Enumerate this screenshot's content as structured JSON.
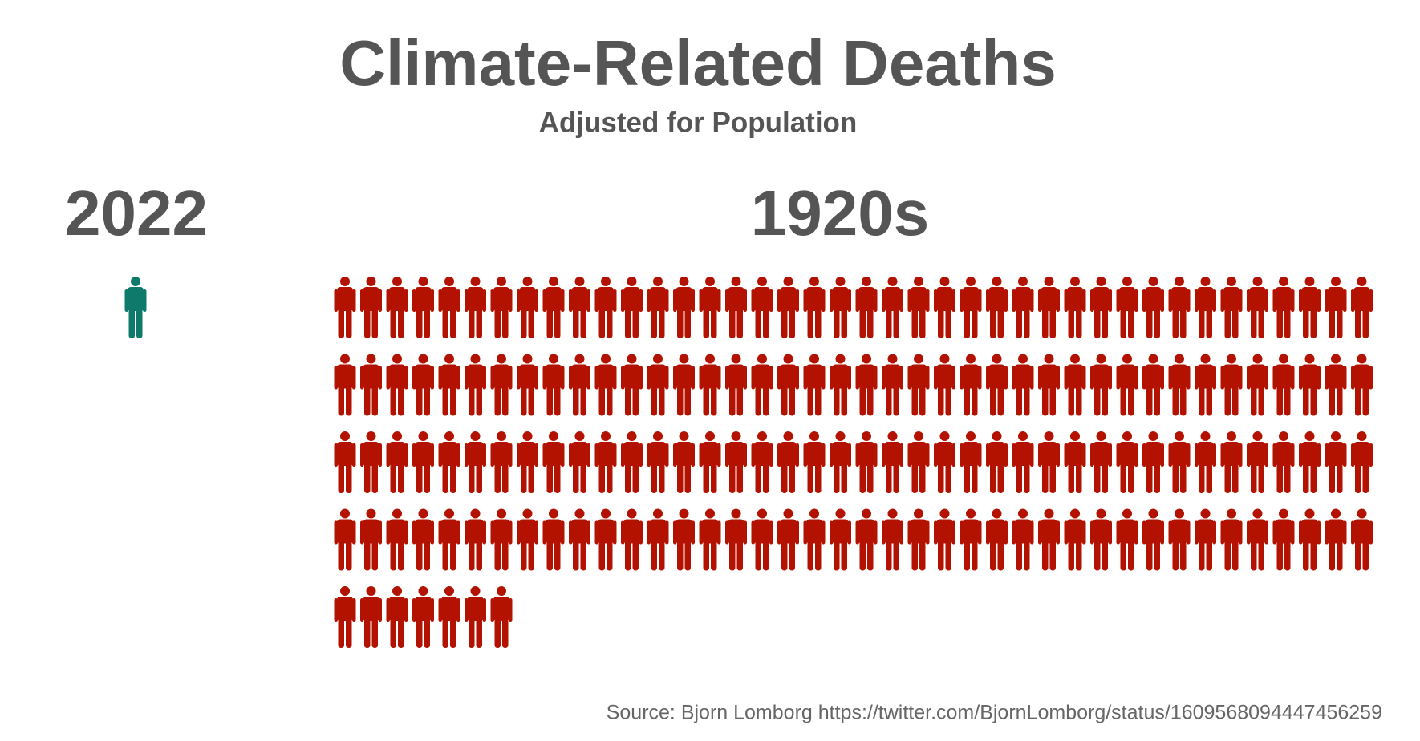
{
  "chart_data": {
    "type": "pictogram",
    "title": "Climate-Related Deaths",
    "subtitle": "Adjusted for Population",
    "categories": [
      "2022",
      "1920s"
    ],
    "values": [
      1,
      167
    ],
    "colors": [
      "#0e7a6b",
      "#b31200"
    ],
    "source": "Source: Bjorn Lomborg https://twitter.com/BjornLomborg/status/1609568094447456259"
  }
}
